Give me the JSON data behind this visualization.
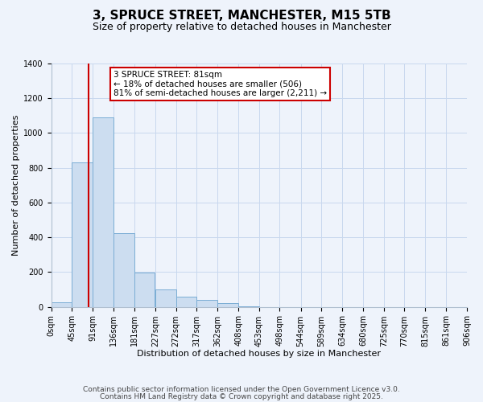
{
  "title": "3, SPRUCE STREET, MANCHESTER, M15 5TB",
  "subtitle": "Size of property relative to detached houses in Manchester",
  "xlabel": "Distribution of detached houses by size in Manchester",
  "ylabel": "Number of detached properties",
  "bar_color": "#ccddf0",
  "bar_edge_color": "#7aadd4",
  "background_color": "#eef3fb",
  "grid_color": "#c8d8ee",
  "bin_edges": [
    0,
    45,
    91,
    136,
    181,
    227,
    272,
    317,
    362,
    408,
    453,
    498,
    544,
    589,
    634,
    680,
    725,
    770,
    815,
    861,
    906
  ],
  "bin_labels": [
    "0sqm",
    "45sqm",
    "91sqm",
    "136sqm",
    "181sqm",
    "227sqm",
    "272sqm",
    "317sqm",
    "362sqm",
    "408sqm",
    "453sqm",
    "498sqm",
    "544sqm",
    "589sqm",
    "634sqm",
    "680sqm",
    "725sqm",
    "770sqm",
    "815sqm",
    "861sqm",
    "906sqm"
  ],
  "bar_heights": [
    25,
    830,
    1090,
    425,
    195,
    100,
    58,
    38,
    20,
    5,
    0,
    0,
    0,
    0,
    0,
    0,
    0,
    0,
    0,
    0
  ],
  "ylim": [
    0,
    1400
  ],
  "yticks": [
    0,
    200,
    400,
    600,
    800,
    1000,
    1200,
    1400
  ],
  "vline_x": 81,
  "vline_color": "#cc0000",
  "annotation_line1": "3 SPRUCE STREET: 81sqm",
  "annotation_line2": "← 18% of detached houses are smaller (506)",
  "annotation_line3": "81% of semi-detached houses are larger (2,211) →",
  "annotation_box_color": "white",
  "annotation_box_edge": "#cc0000",
  "footer_line1": "Contains HM Land Registry data © Crown copyright and database right 2025.",
  "footer_line2": "Contains public sector information licensed under the Open Government Licence v3.0.",
  "title_fontsize": 11,
  "subtitle_fontsize": 9,
  "annotation_fontsize": 7.5,
  "footer_fontsize": 6.5,
  "tick_fontsize": 7,
  "axis_label_fontsize": 8,
  "ylabel_fontsize": 8
}
